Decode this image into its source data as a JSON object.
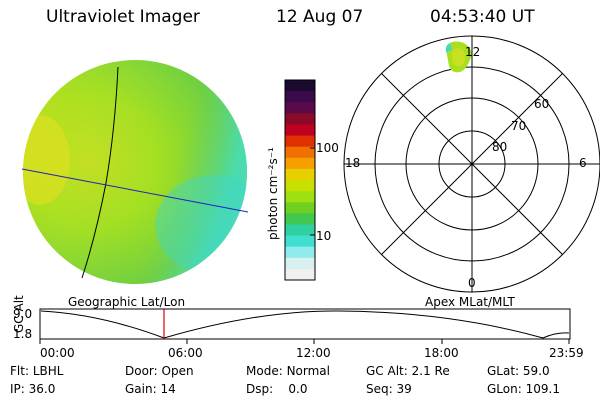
{
  "header": {
    "instrument": "Ultraviolet Imager",
    "date": "12 Aug 07",
    "time": "04:53:40 UT"
  },
  "colorbar": {
    "unit_label": "photon cm⁻²s⁻¹",
    "ticks": [
      "100",
      "10"
    ],
    "colors": [
      "#1a0a2e",
      "#3a0a4a",
      "#5a0a4a",
      "#8a0a2a",
      "#c00020",
      "#e03000",
      "#f07000",
      "#f5a000",
      "#e8d000",
      "#c8e000",
      "#9ee010",
      "#70d020",
      "#40c850",
      "#30d0a0",
      "#40e0d0",
      "#90ecec",
      "#d8f0f0",
      "#f0f0f0"
    ]
  },
  "polar": {
    "lat_labels": [
      "60",
      "70",
      "80"
    ],
    "mlt_labels": {
      "top": "12",
      "left": "18",
      "right": "6",
      "bottom": "0"
    }
  },
  "labels": {
    "left_panel": "Geographic Lat/Lon",
    "right_panel": "Apex MLat/MLT"
  },
  "altitude_plot": {
    "axis_label": "GC Alt",
    "y_ticks": [
      "9.0",
      "1.8"
    ],
    "x_ticks": [
      "00:00",
      "06:00",
      "12:00",
      "18:00",
      "23:59"
    ],
    "marker_color": "#e00000"
  },
  "footer": {
    "row1": [
      {
        "key": "Flt:",
        "val": "LBHL"
      },
      {
        "key": "Door:",
        "val": "Open"
      },
      {
        "key": "Mode:",
        "val": "Normal"
      },
      {
        "key": "GC Alt:",
        "val": "2.1 Re"
      },
      {
        "key": "GLat:",
        "val": "59.0"
      }
    ],
    "row2": [
      {
        "key": "IP:",
        "val": "36.0"
      },
      {
        "key": "Gain:",
        "val": "14"
      },
      {
        "key": "Dsp:",
        "val": "0.0"
      },
      {
        "key": "Seq:",
        "val": "39"
      },
      {
        "key": "GLon:",
        "val": "109.1"
      }
    ]
  }
}
